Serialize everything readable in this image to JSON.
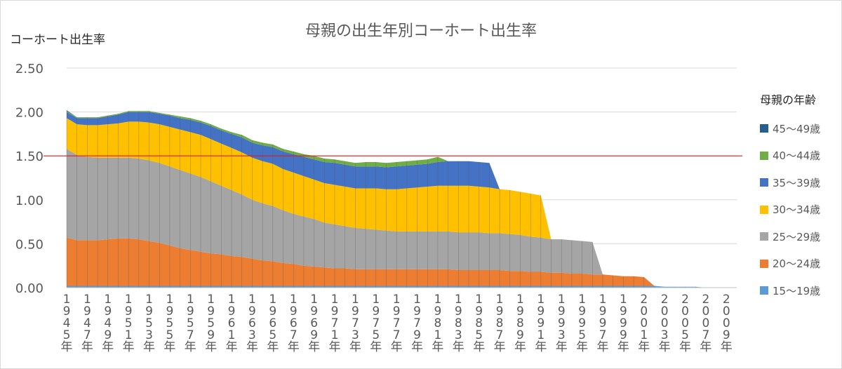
{
  "chart_data": {
    "type": "area",
    "title": "母親の出生年別コーホート出生率",
    "ylabel": "コーホート出生率",
    "ylim": [
      0,
      2.5
    ],
    "yticks": [
      "0.00",
      "0.50",
      "1.00",
      "1.50",
      "2.00",
      "2.50"
    ],
    "grid": true,
    "reference_line": 1.5,
    "reference_color": "#e31a1c",
    "x": [
      1945,
      1946,
      1947,
      1948,
      1949,
      1950,
      1951,
      1952,
      1953,
      1954,
      1955,
      1956,
      1957,
      1958,
      1959,
      1960,
      1961,
      1962,
      1963,
      1964,
      1965,
      1966,
      1967,
      1968,
      1969,
      1970,
      1971,
      1972,
      1973,
      1974,
      1975,
      1976,
      1977,
      1978,
      1979,
      1980,
      1981,
      1982,
      1983,
      1984,
      1985,
      1986,
      1987,
      1988,
      1989,
      1990,
      1991,
      1992,
      1993,
      1994,
      1995,
      1996,
      1997,
      1998,
      1999,
      2000,
      2001,
      2002,
      2003,
      2004,
      2005,
      2006,
      2007,
      2008,
      2009,
      2010
    ],
    "xtick_labels": [
      "1945年",
      "1947年",
      "1949年",
      "1951年",
      "1953年",
      "1955年",
      "1957年",
      "1959年",
      "1961年",
      "1963年",
      "1965年",
      "1967年",
      "1969年",
      "1971年",
      "1973年",
      "1975年",
      "1977年",
      "1979年",
      "1981年",
      "1983年",
      "1985年",
      "1987年",
      "1989年",
      "1991年",
      "1993年",
      "1995年",
      "1997年",
      "1999年",
      "2001年",
      "2003年",
      "2005年",
      "2007年",
      "2009年"
    ],
    "legend_title": "母親の年齢",
    "legend_position": "right",
    "series": [
      {
        "name": "15～19歳",
        "color": "#5b9bd5",
        "values": [
          0.02,
          0.02,
          0.02,
          0.02,
          0.02,
          0.02,
          0.02,
          0.02,
          0.02,
          0.02,
          0.02,
          0.02,
          0.02,
          0.02,
          0.02,
          0.02,
          0.02,
          0.02,
          0.02,
          0.02,
          0.02,
          0.02,
          0.02,
          0.02,
          0.02,
          0.02,
          0.02,
          0.02,
          0.02,
          0.02,
          0.02,
          0.02,
          0.02,
          0.02,
          0.02,
          0.02,
          0.02,
          0.02,
          0.02,
          0.02,
          0.02,
          0.02,
          0.02,
          0.02,
          0.02,
          0.02,
          0.02,
          0.02,
          0.02,
          0.02,
          0.02,
          0.02,
          0.02,
          0.02,
          0.02,
          0.02,
          0.02,
          0.02,
          0.01,
          0.01,
          0.01,
          0.01,
          0.0,
          0.0,
          0.0,
          0.0
        ]
      },
      {
        "name": "20～24歳",
        "color": "#ed7d31",
        "values": [
          0.55,
          0.52,
          0.52,
          0.52,
          0.53,
          0.54,
          0.54,
          0.53,
          0.51,
          0.49,
          0.46,
          0.43,
          0.41,
          0.39,
          0.37,
          0.36,
          0.34,
          0.33,
          0.31,
          0.29,
          0.28,
          0.26,
          0.25,
          0.23,
          0.22,
          0.21,
          0.2,
          0.2,
          0.19,
          0.19,
          0.19,
          0.19,
          0.19,
          0.19,
          0.19,
          0.19,
          0.19,
          0.19,
          0.18,
          0.18,
          0.18,
          0.18,
          0.18,
          0.17,
          0.17,
          0.16,
          0.16,
          0.15,
          0.15,
          0.14,
          0.14,
          0.13,
          0.13,
          0.12,
          0.11,
          0.11,
          0.1,
          0.0,
          0.0,
          0.0,
          0.0,
          0.0,
          0.0,
          0.0,
          0.0,
          0.0
        ]
      },
      {
        "name": "25～29歳",
        "color": "#a5a5a5",
        "values": [
          1.01,
          0.97,
          0.95,
          0.94,
          0.93,
          0.92,
          0.92,
          0.92,
          0.92,
          0.91,
          0.9,
          0.89,
          0.87,
          0.85,
          0.82,
          0.78,
          0.75,
          0.71,
          0.67,
          0.65,
          0.63,
          0.6,
          0.57,
          0.56,
          0.54,
          0.51,
          0.5,
          0.48,
          0.47,
          0.46,
          0.45,
          0.44,
          0.43,
          0.43,
          0.43,
          0.43,
          0.43,
          0.43,
          0.43,
          0.43,
          0.43,
          0.42,
          0.42,
          0.42,
          0.41,
          0.4,
          0.39,
          0.38,
          0.38,
          0.38,
          0.37,
          0.37,
          0.0,
          0.0,
          0.0,
          0.0,
          0.0,
          0.0,
          0.0,
          0.0,
          0.0,
          0.0,
          0.0,
          0.0,
          0.0,
          0.0
        ]
      },
      {
        "name": "30～34歳",
        "color": "#ffc000",
        "values": [
          0.35,
          0.35,
          0.36,
          0.37,
          0.38,
          0.39,
          0.41,
          0.42,
          0.43,
          0.44,
          0.45,
          0.46,
          0.47,
          0.48,
          0.48,
          0.48,
          0.48,
          0.48,
          0.48,
          0.48,
          0.48,
          0.47,
          0.47,
          0.46,
          0.45,
          0.45,
          0.45,
          0.45,
          0.45,
          0.46,
          0.47,
          0.47,
          0.48,
          0.49,
          0.5,
          0.51,
          0.52,
          0.52,
          0.53,
          0.53,
          0.52,
          0.52,
          0.5,
          0.5,
          0.49,
          0.49,
          0.48,
          0.0,
          0.0,
          0.0,
          0.0,
          0.0,
          0.0,
          0.0,
          0.0,
          0.0,
          0.0,
          0.0,
          0.0,
          0.0,
          0.0,
          0.0,
          0.0,
          0.0,
          0.0,
          0.0
        ]
      },
      {
        "name": "35～39歳",
        "color": "#4472c4",
        "values": [
          0.07,
          0.07,
          0.08,
          0.08,
          0.09,
          0.1,
          0.11,
          0.11,
          0.12,
          0.12,
          0.13,
          0.13,
          0.14,
          0.14,
          0.15,
          0.15,
          0.16,
          0.17,
          0.17,
          0.18,
          0.19,
          0.2,
          0.21,
          0.22,
          0.23,
          0.24,
          0.25,
          0.25,
          0.25,
          0.25,
          0.25,
          0.25,
          0.26,
          0.26,
          0.26,
          0.26,
          0.27,
          0.28,
          0.28,
          0.28,
          0.28,
          0.28,
          0.0,
          0.0,
          0.0,
          0.0,
          0.0,
          0.0,
          0.0,
          0.0,
          0.0,
          0.0,
          0.0,
          0.0,
          0.0,
          0.0,
          0.0,
          0.0,
          0.0,
          0.0,
          0.0,
          0.0,
          0.0,
          0.0,
          0.0,
          0.0
        ]
      },
      {
        "name": "40～44歳",
        "color": "#70ad47",
        "values": [
          0.01,
          0.01,
          0.01,
          0.01,
          0.01,
          0.01,
          0.01,
          0.01,
          0.01,
          0.01,
          0.01,
          0.02,
          0.02,
          0.02,
          0.02,
          0.02,
          0.02,
          0.03,
          0.03,
          0.03,
          0.03,
          0.03,
          0.03,
          0.03,
          0.04,
          0.04,
          0.04,
          0.04,
          0.04,
          0.05,
          0.05,
          0.05,
          0.05,
          0.05,
          0.05,
          0.05,
          0.06,
          0.0,
          0.0,
          0.0,
          0.0,
          0.0,
          0.0,
          0.0,
          0.0,
          0.0,
          0.0,
          0.0,
          0.0,
          0.0,
          0.0,
          0.0,
          0.0,
          0.0,
          0.0,
          0.0,
          0.0,
          0.0,
          0.0,
          0.0,
          0.0,
          0.0,
          0.0,
          0.0,
          0.0,
          0.0
        ]
      },
      {
        "name": "45～49歳",
        "color": "#255e91",
        "values": [
          0.01,
          0.0,
          0.0,
          0.0,
          0.0,
          0.0,
          0.0,
          0.0,
          0.0,
          0.0,
          0.0,
          0.0,
          0.0,
          0.0,
          0.0,
          0.0,
          0.0,
          0.0,
          0.0,
          0.0,
          0.0,
          0.0,
          0.0,
          0.0,
          0.0,
          0.0,
          0.0,
          0.0,
          0.0,
          0.0,
          0.0,
          0.0,
          0.0,
          0.0,
          0.0,
          0.0,
          0.0,
          0.0,
          0.0,
          0.0,
          0.0,
          0.0,
          0.0,
          0.0,
          0.0,
          0.0,
          0.0,
          0.0,
          0.0,
          0.0,
          0.0,
          0.0,
          0.0,
          0.0,
          0.0,
          0.0,
          0.0,
          0.0,
          0.0,
          0.0,
          0.0,
          0.0,
          0.0,
          0.0,
          0.0,
          0.0
        ]
      }
    ]
  }
}
